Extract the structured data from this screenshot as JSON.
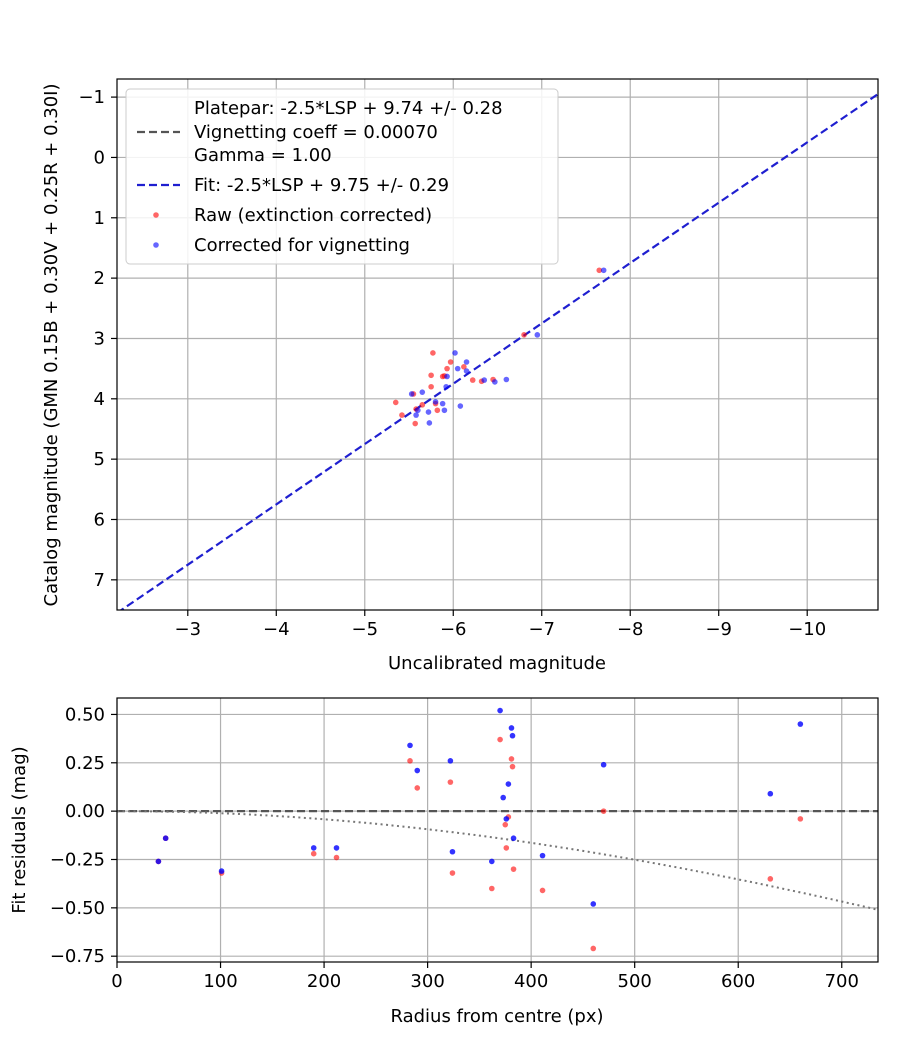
{
  "colors": {
    "raw": "#ff0000",
    "corrected": "#0000ff",
    "fit": "#1f1fd0",
    "platepar": "#555555",
    "grid": "#b0b0b0"
  },
  "chart_data": [
    {
      "type": "scatter",
      "xlabel": "Uncalibrated magnitude",
      "ylabel": "Catalog magnitude (GMN 0.15B + 0.30V + 0.25R + 0.30I)",
      "xlim": [
        -2.2,
        -10.8
      ],
      "ylim": [
        7.5,
        -1.3
      ],
      "xticks": [
        -3,
        -4,
        -5,
        -6,
        -7,
        -8,
        -9,
        -10
      ],
      "yticks": [
        -1,
        0,
        1,
        2,
        3,
        4,
        5,
        6,
        7
      ],
      "xtick_labels": [
        "−3",
        "−4",
        "−5",
        "−6",
        "−7",
        "−8",
        "−9",
        "−10"
      ],
      "ytick_labels": [
        "−1",
        "0",
        "1",
        "2",
        "3",
        "4",
        "5",
        "6",
        "7"
      ],
      "legend_location": "upper-left",
      "legend": [
        {
          "label": "Platepar: -2.5*LSP + 9.74 +/- 0.28",
          "kind": "blank"
        },
        {
          "label": "Vignetting coeff = 0.00070",
          "kind": "dashed-gray"
        },
        {
          "label": "Gamma = 1.00",
          "kind": "blank"
        },
        {
          "label": "Fit: -2.5*LSP + 9.75 +/- 0.29",
          "kind": "dashed-blue"
        },
        {
          "label": "Raw (extinction corrected)",
          "kind": "dot-red"
        },
        {
          "label": "Corrected for vignetting",
          "kind": "dot-blue"
        }
      ],
      "platepar_line": {
        "slope": -2.5,
        "intercept": 9.74
      },
      "fit_line": {
        "slope": -2.5,
        "intercept": 9.75
      },
      "series": [
        {
          "name": "Raw (extinction corrected)",
          "points": [
            [
              -7.65,
              1.87
            ],
            [
              -6.8,
              2.94
            ],
            [
              -5.77,
              3.24
            ],
            [
              -5.97,
              3.39
            ],
            [
              -5.93,
              3.5
            ],
            [
              -6.12,
              3.47
            ],
            [
              -5.75,
              3.61
            ],
            [
              -5.88,
              3.63
            ],
            [
              -6.22,
              3.69
            ],
            [
              -6.32,
              3.71
            ],
            [
              -6.45,
              3.68
            ],
            [
              -5.75,
              3.8
            ],
            [
              -5.55,
              3.92
            ],
            [
              -5.35,
              4.06
            ],
            [
              -5.8,
              4.08
            ],
            [
              -5.58,
              4.17
            ],
            [
              -5.42,
              4.27
            ],
            [
              -5.82,
              4.19
            ],
            [
              -5.57,
              4.41
            ],
            [
              -5.65,
              4.1
            ],
            [
              -5.9,
              3.62
            ]
          ]
        },
        {
          "name": "Corrected for vignetting",
          "points": [
            [
              -7.7,
              1.87
            ],
            [
              -6.95,
              2.94
            ],
            [
              -6.02,
              3.24
            ],
            [
              -6.15,
              3.39
            ],
            [
              -6.05,
              3.5
            ],
            [
              -6.15,
              3.54
            ],
            [
              -5.93,
              3.63
            ],
            [
              -6.35,
              3.69
            ],
            [
              -6.47,
              3.72
            ],
            [
              -6.6,
              3.68
            ],
            [
              -5.92,
              3.8
            ],
            [
              -5.65,
              3.89
            ],
            [
              -5.53,
              3.92
            ],
            [
              -5.88,
              4.08
            ],
            [
              -6.08,
              4.12
            ],
            [
              -5.6,
              4.19
            ],
            [
              -5.58,
              4.27
            ],
            [
              -5.73,
              4.4
            ],
            [
              -5.8,
              4.05
            ],
            [
              -5.9,
              4.19
            ],
            [
              -5.72,
              4.22
            ]
          ]
        }
      ]
    },
    {
      "type": "scatter",
      "xlabel": "Radius from centre (px)",
      "ylabel": "Fit residuals (mag)",
      "xlim": [
        0,
        735
      ],
      "ylim": [
        -0.78,
        0.585
      ],
      "xticks": [
        0,
        100,
        200,
        300,
        400,
        500,
        600,
        700
      ],
      "yticks": [
        0.5,
        0.25,
        0.0,
        -0.25,
        -0.5,
        -0.75
      ],
      "xtick_labels": [
        "0",
        "100",
        "200",
        "300",
        "400",
        "500",
        "600",
        "700"
      ],
      "ytick_labels": [
        "0.50",
        "0.25",
        "0.00",
        "−0.25",
        "−0.50",
        "−0.75"
      ],
      "zero_line": 0.0,
      "vignetting_curve": {
        "coeff": 0.0007
      },
      "series": [
        {
          "name": "Raw (extinction corrected)",
          "points": [
            [
              40,
              -0.26
            ],
            [
              47,
              -0.14
            ],
            [
              101,
              -0.32
            ],
            [
              190,
              -0.22
            ],
            [
              212,
              -0.24
            ],
            [
              283,
              0.26
            ],
            [
              290,
              0.12
            ],
            [
              322,
              0.15
            ],
            [
              324,
              -0.32
            ],
            [
              362,
              -0.4
            ],
            [
              370,
              0.37
            ],
            [
              375,
              -0.07
            ],
            [
              376,
              -0.19
            ],
            [
              378,
              -0.03
            ],
            [
              381,
              0.27
            ],
            [
              382,
              0.23
            ],
            [
              383,
              -0.3
            ],
            [
              411,
              -0.41
            ],
            [
              460,
              -0.71
            ],
            [
              470,
              0.0
            ],
            [
              631,
              -0.35
            ],
            [
              660,
              -0.04
            ]
          ]
        },
        {
          "name": "Corrected for vignetting",
          "points": [
            [
              40,
              -0.26
            ],
            [
              47,
              -0.14
            ],
            [
              101,
              -0.31
            ],
            [
              190,
              -0.19
            ],
            [
              212,
              -0.19
            ],
            [
              283,
              0.34
            ],
            [
              290,
              0.21
            ],
            [
              322,
              0.26
            ],
            [
              324,
              -0.21
            ],
            [
              362,
              -0.26
            ],
            [
              370,
              0.52
            ],
            [
              373,
              0.07
            ],
            [
              376,
              -0.04
            ],
            [
              378,
              0.14
            ],
            [
              381,
              0.43
            ],
            [
              382,
              0.39
            ],
            [
              383,
              -0.14
            ],
            [
              411,
              -0.23
            ],
            [
              460,
              -0.48
            ],
            [
              470,
              0.24
            ],
            [
              631,
              0.09
            ],
            [
              660,
              0.45
            ]
          ]
        }
      ]
    }
  ]
}
